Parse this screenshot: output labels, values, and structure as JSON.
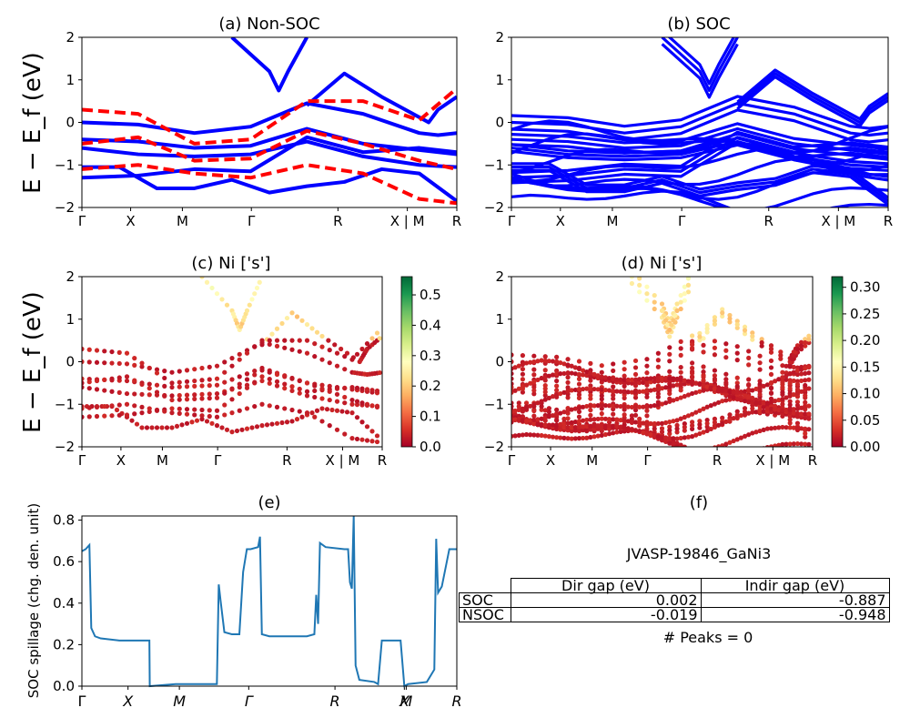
{
  "ylabel_band": "E − E_f (eV)",
  "panel_a_title": "(a) Non-SOC",
  "panel_b_title": "(b) SOC",
  "panel_c_title": "(c)  Ni ['s']",
  "panel_d_title": "(d) Ni ['s']",
  "panel_e_title": "(e)",
  "panel_f_title": "(f)",
  "kpath_labels": [
    "Γ",
    "X",
    "M",
    "Γ",
    "R",
    "X | M",
    "R"
  ],
  "spillage_kpath_labels": [
    "Γ",
    "X",
    "M",
    "Γ",
    "R",
    "X",
    "M",
    "R"
  ],
  "colors": {
    "soc_bands": "#0000ff",
    "nonsoc_bands": "#ff0000",
    "spillage_line": "#1f77b4"
  },
  "colorbar_c": {
    "ticks": [
      "0.0",
      "0.1",
      "0.2",
      "0.3",
      "0.4",
      "0.5"
    ],
    "max": 0.56
  },
  "colorbar_d": {
    "ticks": [
      "0.00",
      "0.05",
      "0.10",
      "0.15",
      "0.20",
      "0.25",
      "0.30"
    ],
    "max": 0.32
  },
  "table": {
    "title": "JVASP-19846_GaNi3",
    "headers": [
      "Dir gap (eV)",
      "Indir gap (eV)"
    ],
    "rows": [
      {
        "label": "SOC",
        "dir": "0.002",
        "indir": "-0.887"
      },
      {
        "label": "NSOC",
        "dir": "-0.019",
        "indir": "-0.948"
      }
    ],
    "footer": "# Peaks = 0"
  },
  "chart_data": [
    {
      "type": "line",
      "title": "(a) Non-SOC",
      "ylabel": "E − E_f (eV)",
      "ylim": [
        -2,
        2
      ],
      "xticks": [
        "Γ",
        "X",
        "M",
        "Γ",
        "R",
        "X | M",
        "R"
      ],
      "series": [
        {
          "style": "solid",
          "color": "#0000ff",
          "bands": [
            [
              [
                0,
                -1.05
              ],
              [
                0.2,
                -1.05
              ],
              [
                0.4,
                -1.55
              ],
              [
                0.6,
                -1.55
              ],
              [
                0.8,
                -1.35
              ],
              [
                1.0,
                -1.65
              ],
              [
                1.2,
                -1.5
              ],
              [
                1.4,
                -1.4
              ],
              [
                1.6,
                -1.1
              ],
              [
                1.8,
                -1.2
              ],
              [
                2.0,
                -1.85
              ]
            ],
            [
              [
                0,
                -0.4
              ],
              [
                0.3,
                -0.45
              ],
              [
                0.6,
                -0.6
              ],
              [
                0.9,
                -0.55
              ],
              [
                1.2,
                -0.15
              ],
              [
                1.5,
                -0.5
              ],
              [
                1.8,
                -0.65
              ],
              [
                2.0,
                -0.75
              ]
            ],
            [
              [
                0,
                0.0
              ],
              [
                0.3,
                -0.05
              ],
              [
                0.6,
                -0.25
              ],
              [
                0.9,
                -0.1
              ],
              [
                1.2,
                0.45
              ],
              [
                1.5,
                0.2
              ],
              [
                1.8,
                -0.25
              ],
              [
                1.9,
                -0.3
              ],
              [
                2.0,
                -0.25
              ]
            ],
            [
              [
                0,
                -0.6
              ],
              [
                0.3,
                -0.75
              ],
              [
                0.6,
                -0.8
              ],
              [
                0.9,
                -0.75
              ],
              [
                1.2,
                -0.45
              ],
              [
                1.5,
                -0.8
              ],
              [
                1.8,
                -1.0
              ],
              [
                2.0,
                -1.05
              ]
            ],
            [
              [
                0,
                -1.3
              ],
              [
                0.3,
                -1.25
              ],
              [
                0.6,
                -1.1
              ],
              [
                0.9,
                -1.15
              ],
              [
                1.2,
                -0.35
              ],
              [
                1.5,
                -0.7
              ],
              [
                1.8,
                -0.6
              ],
              [
                2.0,
                -0.7
              ]
            ],
            [
              [
                0.8,
                2.0
              ],
              [
                1.0,
                1.2
              ],
              [
                1.05,
                0.75
              ],
              [
                1.1,
                1.2
              ],
              [
                1.2,
                2.0
              ]
            ],
            [
              [
                1.2,
                0.4
              ],
              [
                1.4,
                1.15
              ],
              [
                1.6,
                0.6
              ],
              [
                1.85,
                0.0
              ],
              [
                1.9,
                0.3
              ],
              [
                2.0,
                0.6
              ]
            ]
          ]
        },
        {
          "style": "dashed",
          "color": "#ff0000",
          "bands": [
            [
              [
                0,
                0.3
              ],
              [
                0.3,
                0.2
              ],
              [
                0.6,
                -0.5
              ],
              [
                0.9,
                -0.4
              ],
              [
                1.2,
                0.5
              ],
              [
                1.5,
                0.5
              ],
              [
                1.8,
                0.05
              ],
              [
                2.0,
                0.8
              ]
            ],
            [
              [
                0,
                -1.1
              ],
              [
                0.3,
                -1.0
              ],
              [
                0.6,
                -1.2
              ],
              [
                0.9,
                -1.3
              ],
              [
                1.2,
                -1.0
              ],
              [
                1.5,
                -1.2
              ],
              [
                1.8,
                -1.8
              ],
              [
                2.0,
                -1.9
              ]
            ],
            [
              [
                0,
                -0.5
              ],
              [
                0.3,
                -0.35
              ],
              [
                0.6,
                -0.9
              ],
              [
                0.9,
                -0.85
              ],
              [
                1.2,
                -0.2
              ],
              [
                1.5,
                -0.5
              ],
              [
                1.8,
                -0.9
              ],
              [
                2.0,
                -1.1
              ]
            ]
          ]
        }
      ]
    },
    {
      "type": "line",
      "title": "(b) SOC",
      "ylabel": "",
      "ylim": [
        -2,
        2
      ],
      "xticks": [
        "Γ",
        "X",
        "M",
        "Γ",
        "R",
        "X | M",
        "R"
      ],
      "series": [
        {
          "style": "solid",
          "color": "#0000ff",
          "note": "SOC bands"
        }
      ]
    },
    {
      "type": "scatter",
      "title": "(c)  Ni ['s']",
      "ylabel": "E − E_f (eV)",
      "ylim": [
        -2,
        2
      ],
      "xticks": [
        "Γ",
        "X",
        "M",
        "Γ",
        "R",
        "X | M",
        "R"
      ],
      "colorbar": {
        "min": 0.0,
        "max": 0.56,
        "cmap": "RdYlGn"
      }
    },
    {
      "type": "scatter",
      "title": "(d) Ni ['s']",
      "ylabel": "",
      "ylim": [
        -2,
        2
      ],
      "xticks": [
        "Γ",
        "X",
        "M",
        "Γ",
        "R",
        "X | M",
        "R"
      ],
      "colorbar": {
        "min": 0.0,
        "max": 0.32,
        "cmap": "RdYlGn"
      }
    },
    {
      "type": "line",
      "title": "(e)",
      "ylabel": "SOC spillage (chg. den. unit)",
      "ylim": [
        0,
        0.82
      ],
      "yticks": [
        "0.0",
        "0.2",
        "0.4",
        "0.6",
        "0.8"
      ],
      "xticks": [
        "Γ",
        "X",
        "M",
        "Γ",
        "R",
        "X",
        "M",
        "R"
      ],
      "series": [
        {
          "color": "#1f77b4",
          "points": [
            [
              0,
              0.65
            ],
            [
              0.01,
              0.66
            ],
            [
              0.02,
              0.68
            ],
            [
              0.025,
              0.28
            ],
            [
              0.035,
              0.24
            ],
            [
              0.05,
              0.23
            ],
            [
              0.1,
              0.22
            ],
            [
              0.15,
              0.22
            ],
            [
              0.18,
              0.22
            ],
            [
              0.181,
              0.0
            ],
            [
              0.25,
              0.01
            ],
            [
              0.36,
              0.01
            ],
            [
              0.365,
              0.49
            ],
            [
              0.37,
              0.41
            ],
            [
              0.38,
              0.26
            ],
            [
              0.4,
              0.25
            ],
            [
              0.42,
              0.25
            ],
            [
              0.43,
              0.55
            ],
            [
              0.44,
              0.66
            ],
            [
              0.45,
              0.66
            ],
            [
              0.47,
              0.67
            ],
            [
              0.475,
              0.72
            ],
            [
              0.48,
              0.25
            ],
            [
              0.5,
              0.24
            ],
            [
              0.6,
              0.24
            ],
            [
              0.62,
              0.25
            ],
            [
              0.625,
              0.44
            ],
            [
              0.63,
              0.3
            ],
            [
              0.635,
              0.69
            ],
            [
              0.65,
              0.67
            ],
            [
              0.7,
              0.66
            ],
            [
              0.71,
              0.66
            ],
            [
              0.715,
              0.5
            ],
            [
              0.72,
              0.47
            ],
            [
              0.725,
              0.82
            ],
            [
              0.73,
              0.1
            ],
            [
              0.74,
              0.03
            ],
            [
              0.78,
              0.02
            ],
            [
              0.79,
              0.01
            ],
            [
              0.8,
              0.22
            ],
            [
              0.85,
              0.22
            ],
            [
              0.86,
              0.0
            ],
            [
              0.87,
              0.01
            ],
            [
              0.92,
              0.02
            ],
            [
              0.94,
              0.08
            ],
            [
              0.945,
              0.71
            ],
            [
              0.95,
              0.45
            ],
            [
              0.96,
              0.48
            ],
            [
              0.98,
              0.66
            ],
            [
              1.0,
              0.66
            ]
          ]
        }
      ]
    }
  ]
}
